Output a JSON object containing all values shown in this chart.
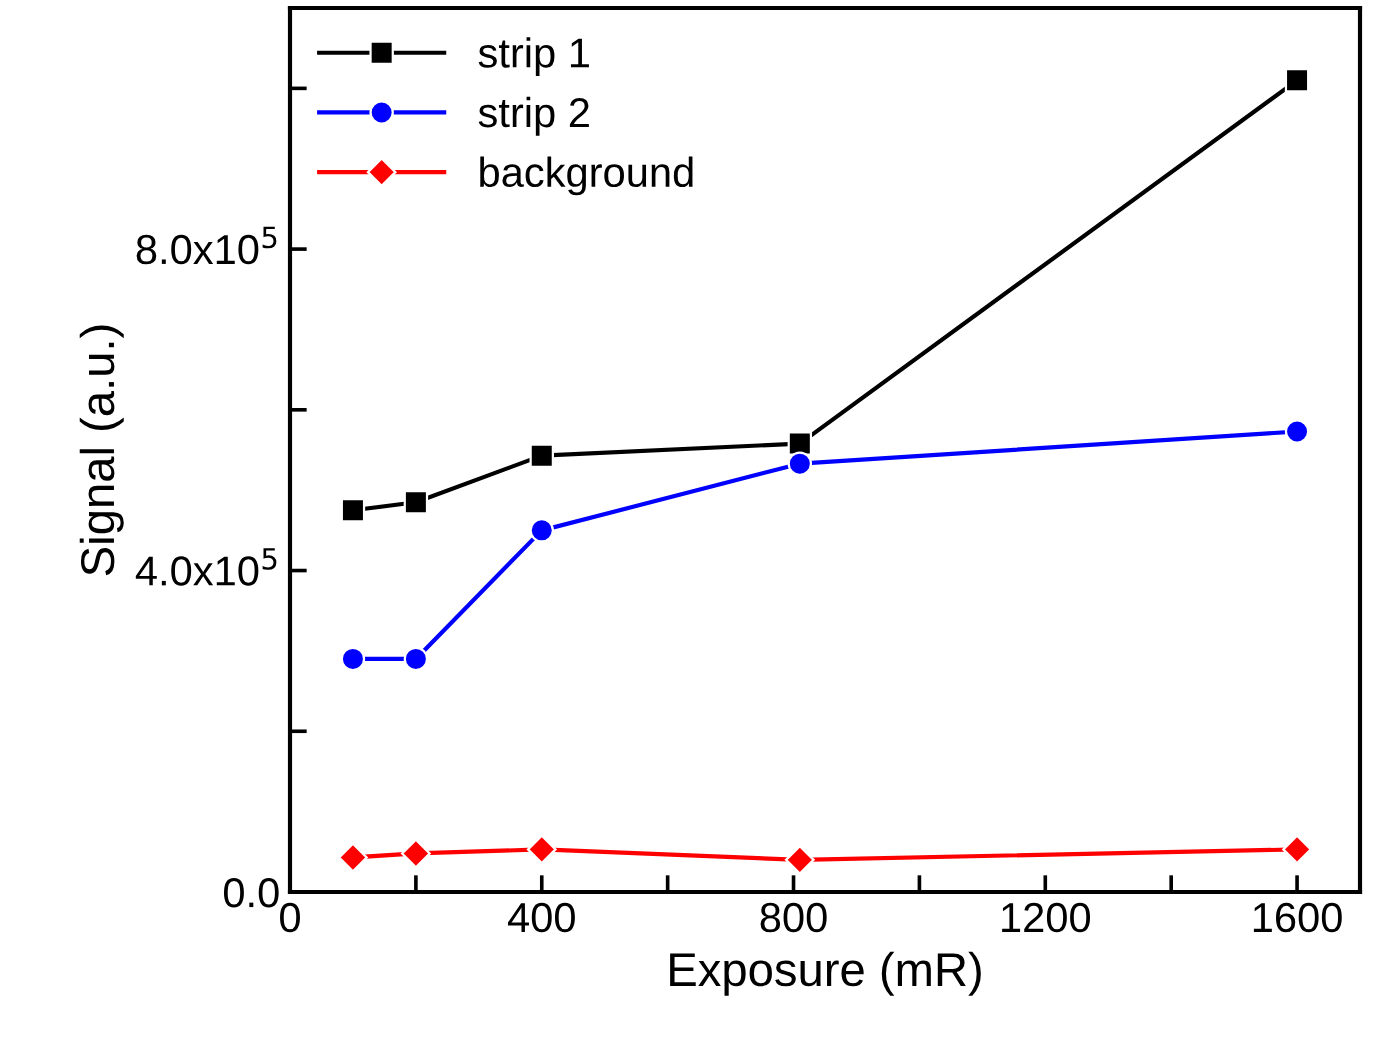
{
  "chart_data": {
    "type": "line",
    "xlabel": "Exposure (mR)",
    "ylabel": "Signal (a.u.)",
    "x": [
      100,
      200,
      400,
      810,
      1600
    ],
    "series": [
      {
        "name": "strip 1",
        "color": "#000000",
        "marker": "square",
        "values": [
          475000,
          485000,
          543000,
          558000,
          1010000
        ]
      },
      {
        "name": "strip 2",
        "color": "#0000ff",
        "marker": "circle",
        "values": [
          290000,
          290000,
          450000,
          533000,
          573000
        ]
      },
      {
        "name": "background",
        "color": "#ff0000",
        "marker": "diamond",
        "values": [
          43000,
          48000,
          53000,
          40000,
          53000
        ]
      }
    ],
    "xlim": [
      0,
      1700
    ],
    "xticks": [
      0,
      {
        "value": 200,
        "label": null
      },
      400,
      {
        "value": 600,
        "label": null
      },
      800,
      {
        "value": 1000,
        "label": null
      },
      1200,
      {
        "value": 1400,
        "label": null
      },
      1600
    ],
    "ylim": [
      0,
      1100000
    ],
    "yticks": [
      {
        "value": 0,
        "label": "0.0"
      },
      {
        "value": 200000,
        "label": null
      },
      {
        "value": 400000,
        "label": "4.0x10$^{5}$"
      },
      {
        "value": 600000,
        "label": null
      },
      {
        "value": 800000,
        "label": "8.0x10$^{5}$"
      },
      {
        "value": 1000000,
        "label": null
      }
    ],
    "grid": false,
    "legend": "top left",
    "line_style": "solid"
  }
}
